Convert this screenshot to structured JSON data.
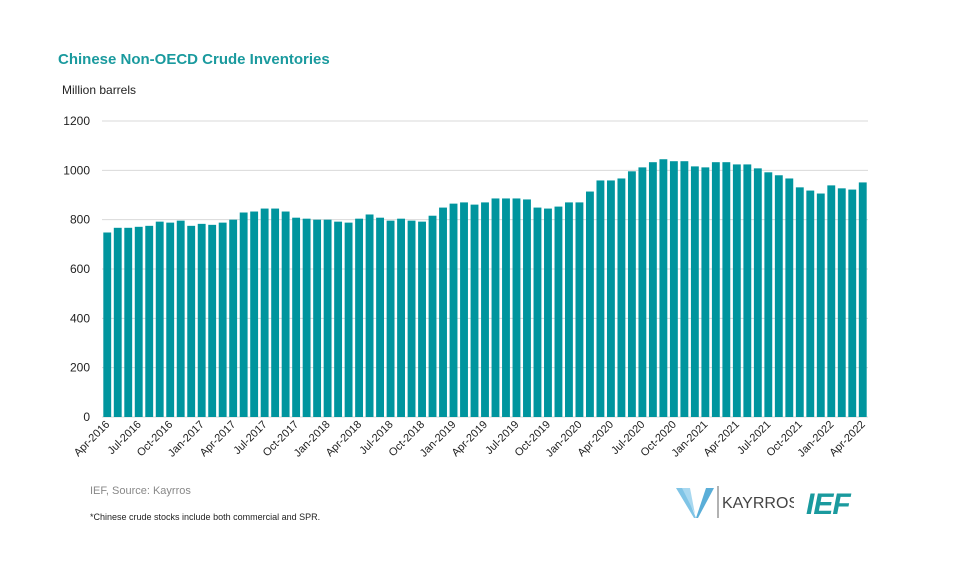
{
  "chart_data": {
    "type": "bar",
    "title": "Chinese Non-OECD Crude Inventories",
    "ylabel": "Million barrels",
    "xlabel": "",
    "ylim": [
      0,
      1200
    ],
    "yticks": [
      0,
      200,
      400,
      600,
      800,
      1000,
      1200
    ],
    "grid": true,
    "bar_color": "#00959e",
    "categories": [
      "Apr-2016",
      "May-2016",
      "Jun-2016",
      "Jul-2016",
      "Aug-2016",
      "Sep-2016",
      "Oct-2016",
      "Nov-2016",
      "Dec-2016",
      "Jan-2017",
      "Feb-2017",
      "Mar-2017",
      "Apr-2017",
      "May-2017",
      "Jun-2017",
      "Jul-2017",
      "Aug-2017",
      "Sep-2017",
      "Oct-2017",
      "Nov-2017",
      "Dec-2017",
      "Jan-2018",
      "Feb-2018",
      "Mar-2018",
      "Apr-2018",
      "May-2018",
      "Jun-2018",
      "Jul-2018",
      "Aug-2018",
      "Sep-2018",
      "Oct-2018",
      "Nov-2018",
      "Dec-2018",
      "Jan-2019",
      "Feb-2019",
      "Mar-2019",
      "Apr-2019",
      "May-2019",
      "Jun-2019",
      "Jul-2019",
      "Aug-2019",
      "Sep-2019",
      "Oct-2019",
      "Nov-2019",
      "Dec-2019",
      "Jan-2020",
      "Feb-2020",
      "Mar-2020",
      "Apr-2020",
      "May-2020",
      "Jun-2020",
      "Jul-2020",
      "Aug-2020",
      "Sep-2020",
      "Oct-2020",
      "Nov-2020",
      "Dec-2020",
      "Jan-2021",
      "Feb-2021",
      "Mar-2021",
      "Apr-2021",
      "May-2021",
      "Jun-2021",
      "Jul-2021",
      "Aug-2021",
      "Sep-2021",
      "Oct-2021",
      "Nov-2021",
      "Dec-2021",
      "Jan-2022",
      "Feb-2022",
      "Mar-2022",
      "Apr-2022"
    ],
    "tick_labels": [
      "Apr-2016",
      "Jul-2016",
      "Oct-2016",
      "Jan-2017",
      "Apr-2017",
      "Jul-2017",
      "Oct-2017",
      "Jan-2018",
      "Apr-2018",
      "Jul-2018",
      "Oct-2018",
      "Jan-2019",
      "Apr-2019",
      "Jul-2019",
      "Oct-2019",
      "Jan-2020",
      "Apr-2020",
      "Jul-2020",
      "Oct-2020",
      "Jan-2021",
      "Apr-2021",
      "Jul-2021",
      "Oct-2021",
      "Jan-2022",
      "Apr-2022"
    ],
    "values": [
      748,
      767,
      767,
      771,
      775,
      792,
      788,
      796,
      775,
      783,
      779,
      788,
      800,
      829,
      833,
      845,
      845,
      833,
      808,
      804,
      800,
      800,
      792,
      788,
      804,
      821,
      808,
      796,
      804,
      796,
      792,
      816,
      849,
      865,
      870,
      861,
      870,
      886,
      886,
      886,
      882,
      849,
      845,
      853,
      870,
      870,
      914,
      959,
      959,
      967,
      996,
      1012,
      1033,
      1045,
      1037,
      1037,
      1016,
      1012,
      1033,
      1033,
      1024,
      1024,
      1008,
      992,
      980,
      967,
      931,
      918,
      906,
      939,
      927,
      922,
      951
    ]
  },
  "footer": {
    "source": "IEF, Source: Kayrros",
    "note": "*Chinese crude stocks include both commercial and SPR.",
    "logos": [
      "KAYRROS",
      "IEF"
    ]
  }
}
